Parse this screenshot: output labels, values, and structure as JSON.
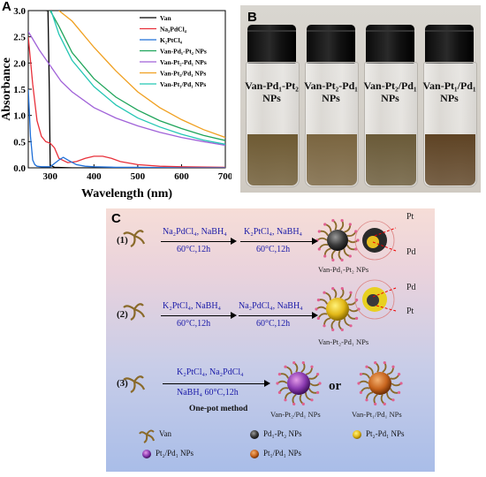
{
  "panelA": {
    "letter": "A",
    "xlabel": "Wavelength (nm)",
    "ylabel": "Absorbance",
    "xticks": [
      "300",
      "400",
      "500",
      "600",
      "700"
    ],
    "yticks": [
      "0.0",
      "0.5",
      "1.0",
      "1.5",
      "2.0",
      "2.5",
      "3.0"
    ],
    "legend": [
      {
        "label": "Van",
        "color": "#000000"
      },
      {
        "label": "Na₂PdCl₄",
        "color": "#e8303a"
      },
      {
        "label": "K₂PtCl₄",
        "color": "#1f6fd8"
      },
      {
        "label": "Van-Pd₁-Pt₂ NPs",
        "color": "#1fa45a"
      },
      {
        "label": "Van-Pt₂-Pd₁ NPs",
        "color": "#a062d8"
      },
      {
        "label": "Van-Pt₂/Pd₁ NPs",
        "color": "#f0a020"
      },
      {
        "label": "Van-Pt₁/Pd₁ NPs",
        "color": "#24c6b4"
      }
    ]
  },
  "chart_data": {
    "type": "line",
    "xlabel": "Wavelength (nm)",
    "ylabel": "Absorbance",
    "xlim": [
      250,
      700
    ],
    "ylim": [
      0,
      3.0
    ],
    "series": [
      {
        "name": "Van",
        "x": [
          290,
          293,
          295,
          298,
          300,
          310,
          350,
          400,
          500,
          600,
          700
        ],
        "y": [
          3.0,
          3.0,
          3.0,
          1.5,
          0.05,
          0.01,
          0.0,
          0.0,
          0.0,
          0.0,
          0.0
        ]
      },
      {
        "name": "Na₂PdCl₄",
        "x": [
          250,
          260,
          270,
          280,
          290,
          300,
          310,
          320,
          340,
          360,
          380,
          400,
          420,
          440,
          460,
          500,
          550,
          600,
          700
        ],
        "y": [
          2.5,
          1.6,
          0.9,
          0.6,
          0.5,
          0.47,
          0.38,
          0.18,
          0.1,
          0.12,
          0.18,
          0.22,
          0.22,
          0.18,
          0.12,
          0.06,
          0.03,
          0.02,
          0.01
        ]
      },
      {
        "name": "K₂PtCl₄",
        "x": [
          250,
          255,
          260,
          265,
          270,
          280,
          300,
          320,
          330,
          340,
          360,
          380,
          400,
          450,
          500,
          600,
          700
        ],
        "y": [
          1.5,
          0.6,
          0.15,
          0.06,
          0.03,
          0.02,
          0.02,
          0.15,
          0.2,
          0.15,
          0.06,
          0.03,
          0.02,
          0.01,
          0.01,
          0.0,
          0.0
        ]
      },
      {
        "name": "Van-Pd₁-Pt₂ NPs",
        "x": [
          300,
          320,
          350,
          400,
          450,
          500,
          550,
          600,
          650,
          700
        ],
        "y": [
          3.0,
          2.7,
          2.2,
          1.7,
          1.35,
          1.1,
          0.9,
          0.75,
          0.62,
          0.52
        ]
      },
      {
        "name": "Van-Pt₂-Pd₁ NPs",
        "x": [
          250,
          275,
          300,
          325,
          350,
          400,
          450,
          500,
          550,
          600,
          650,
          700
        ],
        "y": [
          2.6,
          2.25,
          1.95,
          1.65,
          1.45,
          1.15,
          0.95,
          0.8,
          0.68,
          0.58,
          0.5,
          0.43
        ]
      },
      {
        "name": "Van-Pt₂/Pd₁ NPs",
        "x": [
          320,
          350,
          400,
          450,
          500,
          550,
          600,
          650,
          700
        ],
        "y": [
          3.0,
          2.8,
          2.3,
          1.85,
          1.45,
          1.15,
          0.92,
          0.73,
          0.58
        ]
      },
      {
        "name": "Van-Pt₁/Pd₁ NPs",
        "x": [
          302,
          320,
          350,
          400,
          450,
          500,
          550,
          600,
          650,
          700
        ],
        "y": [
          3.0,
          2.55,
          2.05,
          1.55,
          1.2,
          0.95,
          0.78,
          0.64,
          0.53,
          0.45
        ]
      }
    ]
  },
  "panelB": {
    "letter": "B",
    "vials": [
      {
        "line1": "Van-Pd₁-Pt₂",
        "line2": "NPs",
        "liquid": "#6e5a33"
      },
      {
        "line1": "Van-Pt₂-Pd₁",
        "line2": "NPs",
        "liquid": "#7a6540"
      },
      {
        "line1": "Van-Pt₂/Pd₁",
        "line2": "NPs",
        "liquid": "#6a5a38"
      },
      {
        "line1": "Van-Pt₁/Pd₁",
        "line2": "NPs",
        "liquid": "#5e4324"
      }
    ]
  },
  "panelC": {
    "letter": "C",
    "route1": {
      "num": "(1)",
      "r1_top": "Na₂PdCl₄, NaBH₄",
      "r1_bot": "60°C,12h",
      "r2_top": "K₂PtCl₄, NaBH₄",
      "r2_bot": "60°C,12h",
      "product": "Van-Pd₁-Pt₂ NPs",
      "inset1": "Pt",
      "inset2": "Pd"
    },
    "route2": {
      "num": "(2)",
      "r1_top": "K₂PtCl₄, NaBH₄",
      "r1_bot": "60°C,12h",
      "r2_top": "Na₂PdCl₄, NaBH₄",
      "r2_bot": "60°C,12h",
      "product": "Van-Pt₂-Pd₁ NPs",
      "inset1": "Pd",
      "inset2": "Pt"
    },
    "route3": {
      "num": "(3)",
      "r_top": "K₂PtCl₄, Na₂PdCl₄",
      "r_bot": "NaBH₄  60°C,12h",
      "method": "One-pot method",
      "product1": "Van-Pt₂/Pd₁ NPs",
      "or": "or",
      "product2": "Van-Pt₁/Pd₁ NPs"
    },
    "legend": {
      "van": "Van",
      "pd1pt2": "Pd₁-Pt₂ NPs",
      "pt2pd1": "Pt₂-Pd₁ NPs",
      "pt2slpd1": "Pt₂/Pd₁ NPs",
      "pt1slpd1": "Pt₁/Pd₁ NPs"
    },
    "colors": {
      "dark": "#3a3a3a",
      "yellow": "#e8c020",
      "purple": "#8a3ab0",
      "orange": "#c8651e",
      "van": "#8a6a2a",
      "pink": "#e06090"
    }
  }
}
